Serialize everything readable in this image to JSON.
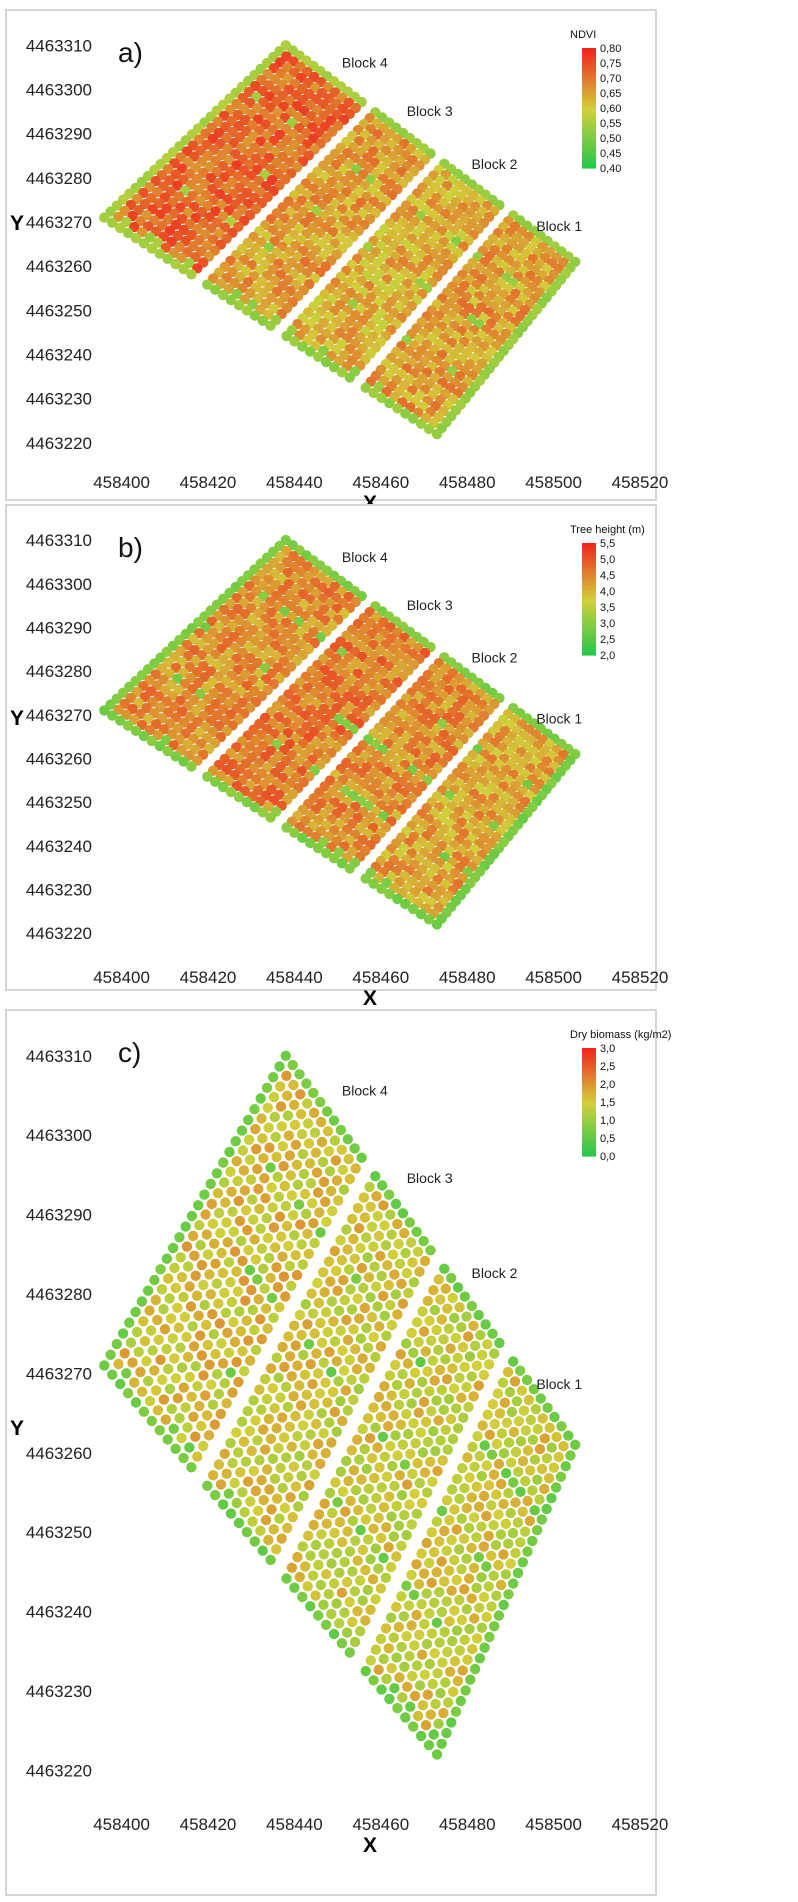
{
  "chart_data": [
    {
      "type": "scatter",
      "panel_label": "a)",
      "xlabel": "X",
      "ylabel": "Y",
      "xlim": [
        458395,
        458520
      ],
      "ylim": [
        4463215,
        4463313
      ],
      "xticks": [
        "458400",
        "458420",
        "458440",
        "458460",
        "458480",
        "458500",
        "458520"
      ],
      "yticks": [
        "4463220",
        "4463230",
        "4463240",
        "4463250",
        "4463260",
        "4463270",
        "4463280",
        "4463290",
        "4463300",
        "4463310"
      ],
      "grid": false,
      "colorbar": {
        "title": "NDVI",
        "ticks": [
          "0,80",
          "0,75",
          "0,70",
          "0,65",
          "0,60",
          "0,55",
          "0,50",
          "0,45",
          "0,40"
        ],
        "min": 0.4,
        "max": 0.8,
        "placement": "top-right"
      },
      "block_labels": [
        {
          "text": "Block 4",
          "x": 458451,
          "y": 4463305
        },
        {
          "text": "Block 3",
          "x": 458466,
          "y": 4463294
        },
        {
          "text": "Block 2",
          "x": 458481,
          "y": 4463282
        },
        {
          "text": "Block 1",
          "x": 458496,
          "y": 4463268
        }
      ],
      "field": {
        "corners": [
          [
            458396,
            4463271
          ],
          [
            458438,
            4463310
          ],
          [
            458505,
            4463261
          ],
          [
            458473,
            4463222
          ]
        ],
        "rows": 30,
        "boundaries": [
          0.28,
          0.52,
          0.76
        ],
        "block_means": [
          0.72,
          0.66,
          0.64,
          0.66
        ],
        "edge_value": 0.48
      }
    },
    {
      "type": "scatter",
      "panel_label": "b)",
      "xlabel": "X",
      "ylabel": "Y",
      "xlim": [
        458395,
        458520
      ],
      "ylim": [
        4463215,
        4463313
      ],
      "xticks": [
        "458400",
        "458420",
        "458440",
        "458460",
        "458480",
        "458500",
        "458520"
      ],
      "yticks": [
        "4463220",
        "4463230",
        "4463240",
        "4463250",
        "4463260",
        "4463270",
        "4463280",
        "4463290",
        "4463300",
        "4463310"
      ],
      "grid": false,
      "colorbar": {
        "title": "Tree height (m)",
        "ticks": [
          "5,5",
          "5,0",
          "4,5",
          "4,0",
          "3,5",
          "3,0",
          "2,5",
          "2,0"
        ],
        "min": 2.0,
        "max": 5.5,
        "placement": "top-right"
      },
      "block_labels": [
        {
          "text": "Block 4",
          "x": 458451,
          "y": 4463305
        },
        {
          "text": "Block 3",
          "x": 458466,
          "y": 4463294
        },
        {
          "text": "Block 2",
          "x": 458481,
          "y": 4463282
        },
        {
          "text": "Block 1",
          "x": 458496,
          "y": 4463268
        }
      ],
      "field": {
        "corners": [
          [
            458396,
            4463271
          ],
          [
            458438,
            4463310
          ],
          [
            458505,
            4463261
          ],
          [
            458473,
            4463222
          ]
        ],
        "rows": 30,
        "boundaries": [
          0.28,
          0.52,
          0.76
        ],
        "block_means": [
          4.4,
          4.6,
          4.4,
          4.2
        ],
        "edge_value": 2.3
      }
    },
    {
      "type": "scatter",
      "panel_label": "c)",
      "xlabel": "X",
      "ylabel": "Y",
      "xlim": [
        458395,
        458520
      ],
      "ylim": [
        4463215,
        4463313
      ],
      "xticks": [
        "458400",
        "458420",
        "458440",
        "458460",
        "458480",
        "458500",
        "458520"
      ],
      "yticks": [
        "4463220",
        "4463230",
        "4463240",
        "4463250",
        "4463260",
        "4463270",
        "4463280",
        "4463290",
        "4463300",
        "4463310"
      ],
      "grid": false,
      "colorbar": {
        "title": "Dry biomass (kg/m2)",
        "ticks": [
          "3,0",
          "2,5",
          "2,0",
          "1,5",
          "1,0",
          "0,5",
          "0,0"
        ],
        "min": 0.0,
        "max": 3.0,
        "placement": "top-right"
      },
      "block_labels": [
        {
          "text": "Block 4",
          "x": 458451,
          "y": 4463305
        },
        {
          "text": "Block 3",
          "x": 458466,
          "y": 4463294
        },
        {
          "text": "Block 2",
          "x": 458481,
          "y": 4463282
        },
        {
          "text": "Block 1",
          "x": 458496,
          "y": 4463268
        }
      ],
      "field": {
        "corners": [
          [
            458396,
            4463271
          ],
          [
            458438,
            4463310
          ],
          [
            458505,
            4463261
          ],
          [
            458473,
            4463222
          ]
        ],
        "rows": 30,
        "boundaries": [
          0.28,
          0.52,
          0.76
        ],
        "block_means": [
          1.6,
          1.5,
          1.5,
          1.5
        ],
        "edge_value": 0.3
      }
    }
  ],
  "colors": {
    "low": "#1fc84a",
    "mid": "#d2cf3c",
    "high": "#f0261e",
    "frame": "#d5d5d5",
    "background": "#ffffff"
  }
}
